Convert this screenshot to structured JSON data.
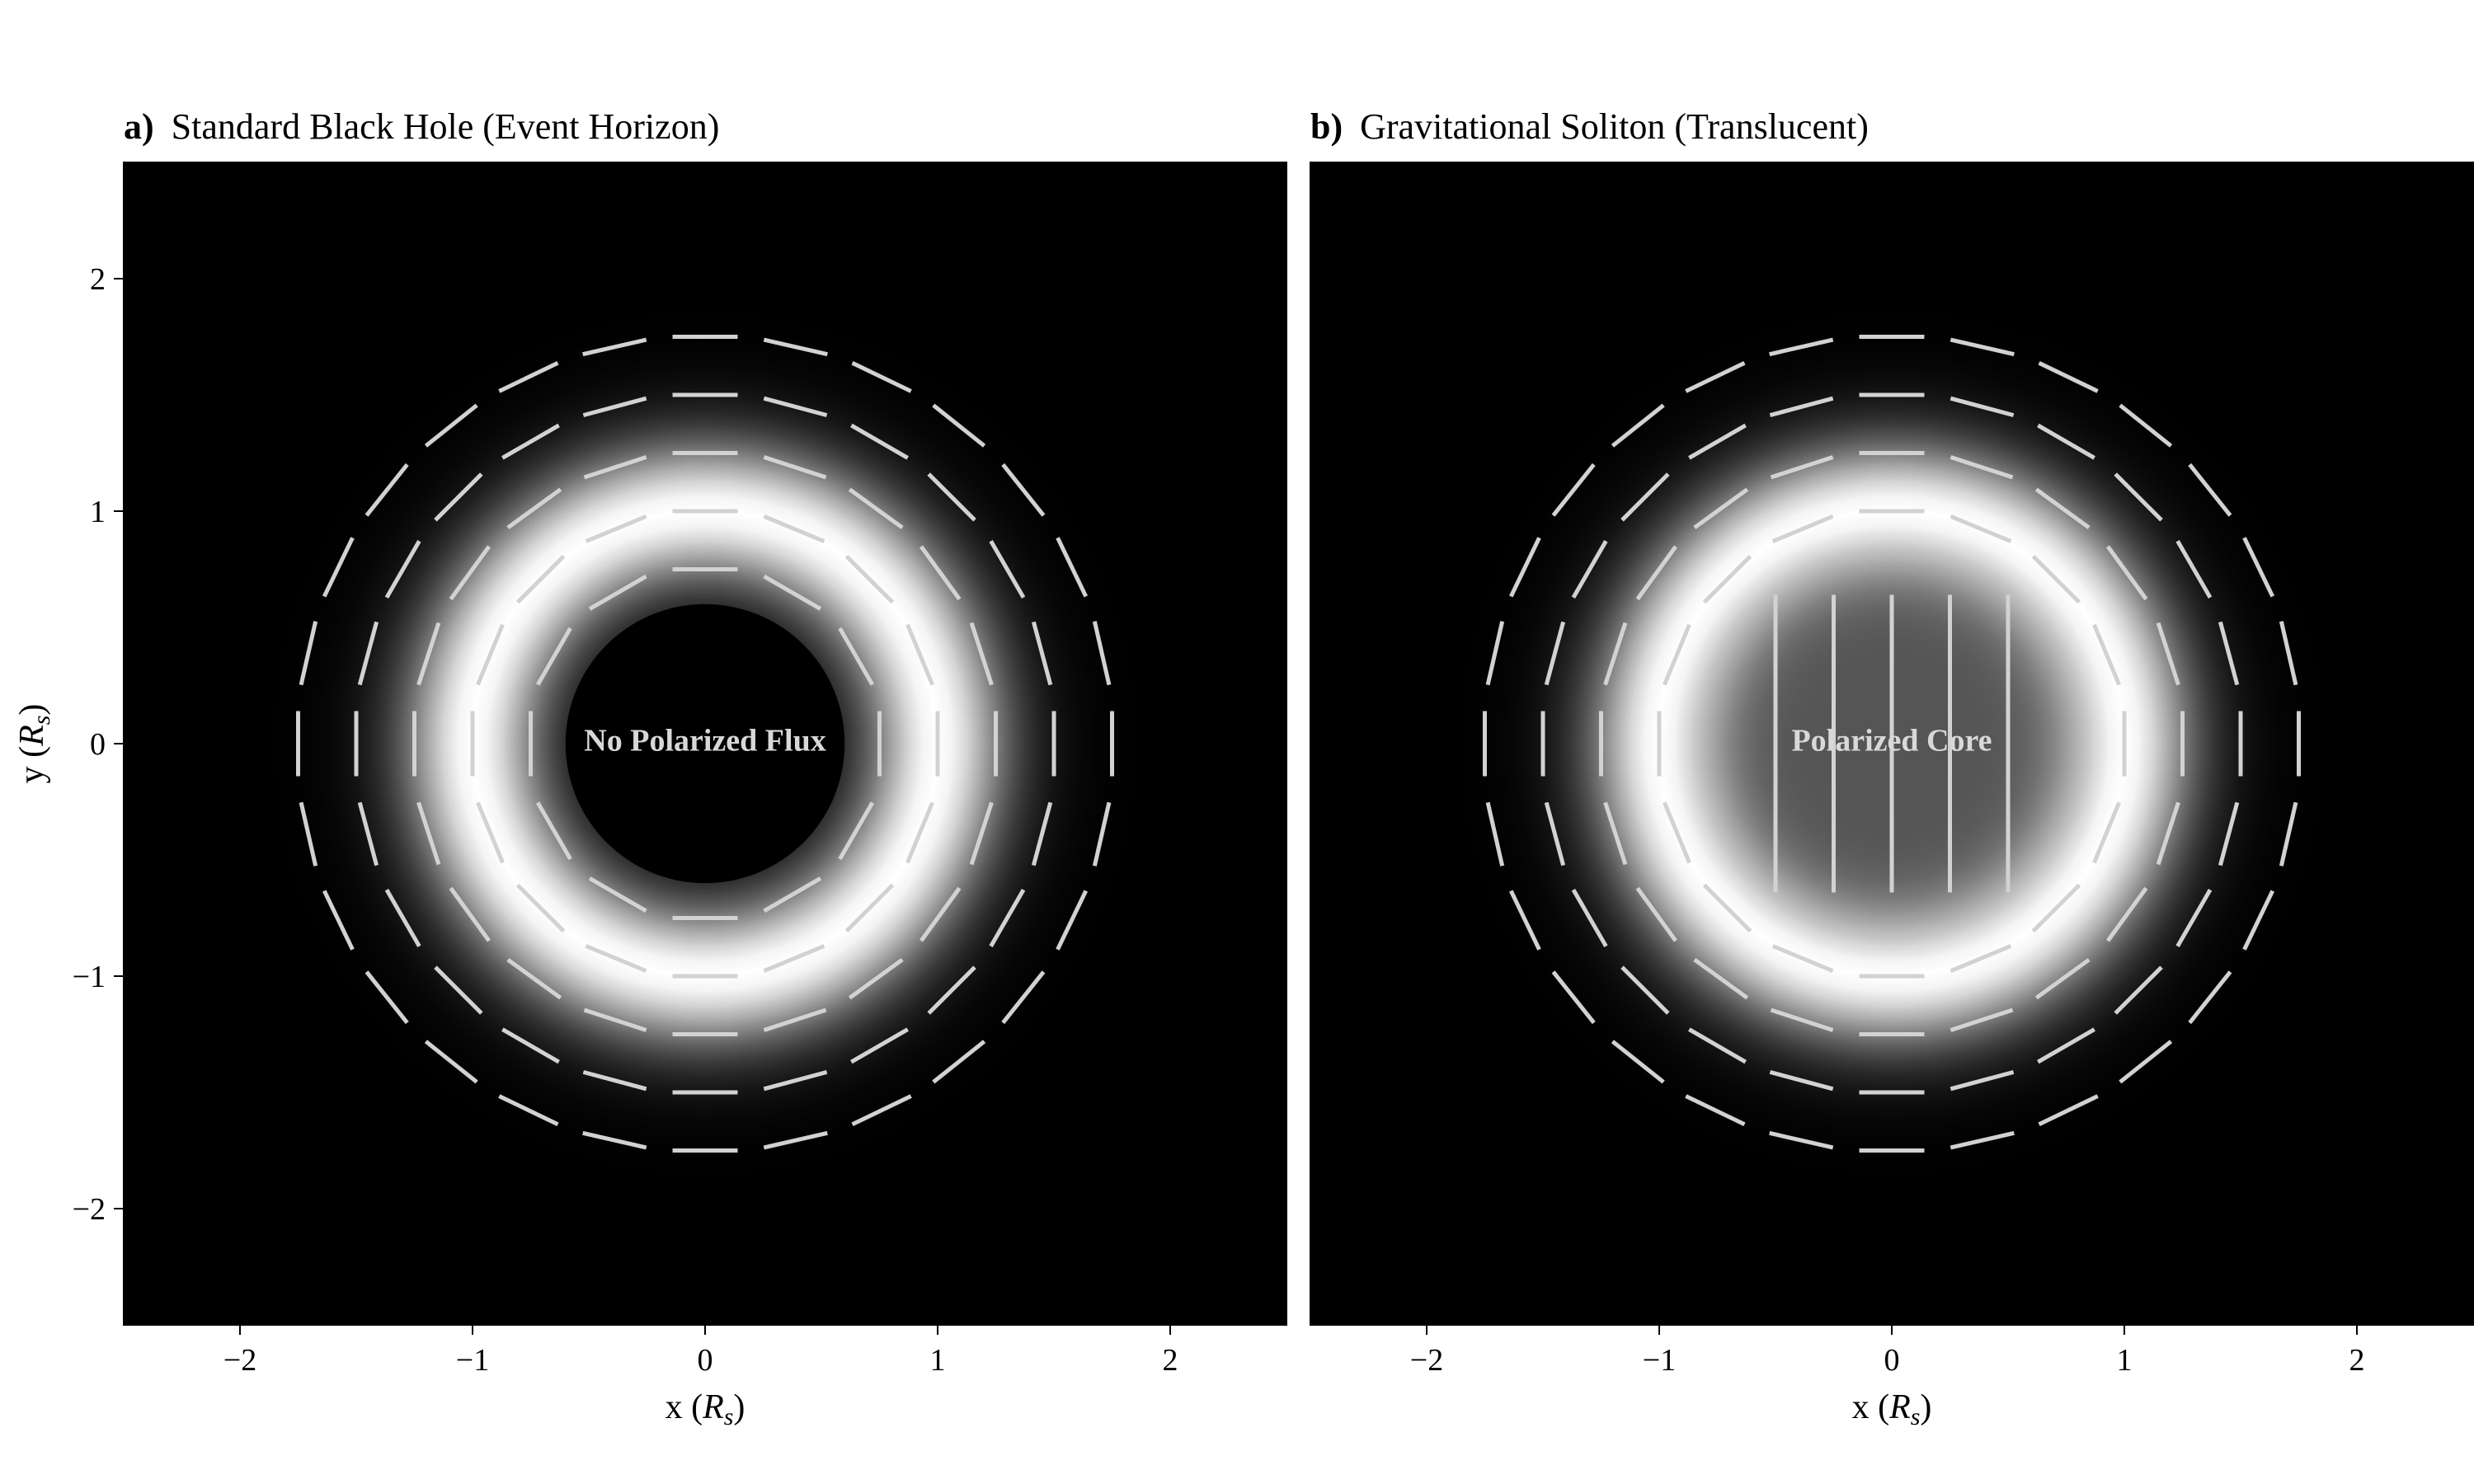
{
  "chart_data": [
    {
      "type": "heatmap",
      "panel_label": "a)",
      "title": "Standard Black Hole (Event Horizon)",
      "xlabel": "x (R_s)",
      "ylabel": "y (R_s)",
      "xlim": [
        -2.5,
        2.5
      ],
      "ylim": [
        -2.5,
        2.5
      ],
      "xticks": [
        -2,
        -1,
        0,
        1,
        2
      ],
      "yticks": [
        -2,
        -1,
        0,
        1,
        2
      ],
      "colormap": "grayscale",
      "intensity": {
        "ring_radius": 1.0,
        "ring_width": 0.38,
        "shadow_radius": 0.6
      },
      "polarization": {
        "pattern": "azimuthal",
        "rings": [
          {
            "radius": 0.75,
            "count": 12
          },
          {
            "radius": 1.0,
            "count": 16
          },
          {
            "radius": 1.25,
            "count": 20
          },
          {
            "radius": 1.5,
            "count": 24
          },
          {
            "radius": 1.75,
            "count": 28
          }
        ],
        "core": "none"
      },
      "annotation": {
        "text": "No Polarized Flux",
        "x": 0,
        "y": 0
      }
    },
    {
      "type": "heatmap",
      "panel_label": "b)",
      "title": "Gravitational Soliton (Translucent)",
      "xlabel": "x (R_s)",
      "ylabel": "",
      "xlim": [
        -2.5,
        2.5
      ],
      "ylim": [
        -2.5,
        2.5
      ],
      "xticks": [
        -2,
        -1,
        0,
        1,
        2
      ],
      "yticks": [],
      "colormap": "grayscale",
      "intensity": {
        "ring_radius": 1.0,
        "ring_width": 0.38,
        "core_level": 0.33
      },
      "polarization": {
        "pattern": "azimuthal",
        "rings": [
          {
            "radius": 1.0,
            "count": 16
          },
          {
            "radius": 1.25,
            "count": 20
          },
          {
            "radius": 1.5,
            "count": 24
          },
          {
            "radius": 1.75,
            "count": 28
          }
        ],
        "core": "vertical",
        "core_columns_x": [
          -0.5,
          -0.25,
          0,
          0.25,
          0.5
        ],
        "core_rows_y": [
          -0.5,
          -0.25,
          0,
          0.25,
          0.5
        ]
      },
      "annotation": {
        "text": "Polarized Core",
        "x": 0,
        "y": 0
      }
    }
  ],
  "axis_label_parts": {
    "x_prefix": "x (",
    "y_prefix": "y (",
    "var": "R",
    "sub": "s",
    "suffix": ")"
  },
  "colors": {
    "background": "#000000",
    "ring": "#ffffff",
    "ticks_line": "#d2d2d2",
    "page": "#ffffff"
  }
}
